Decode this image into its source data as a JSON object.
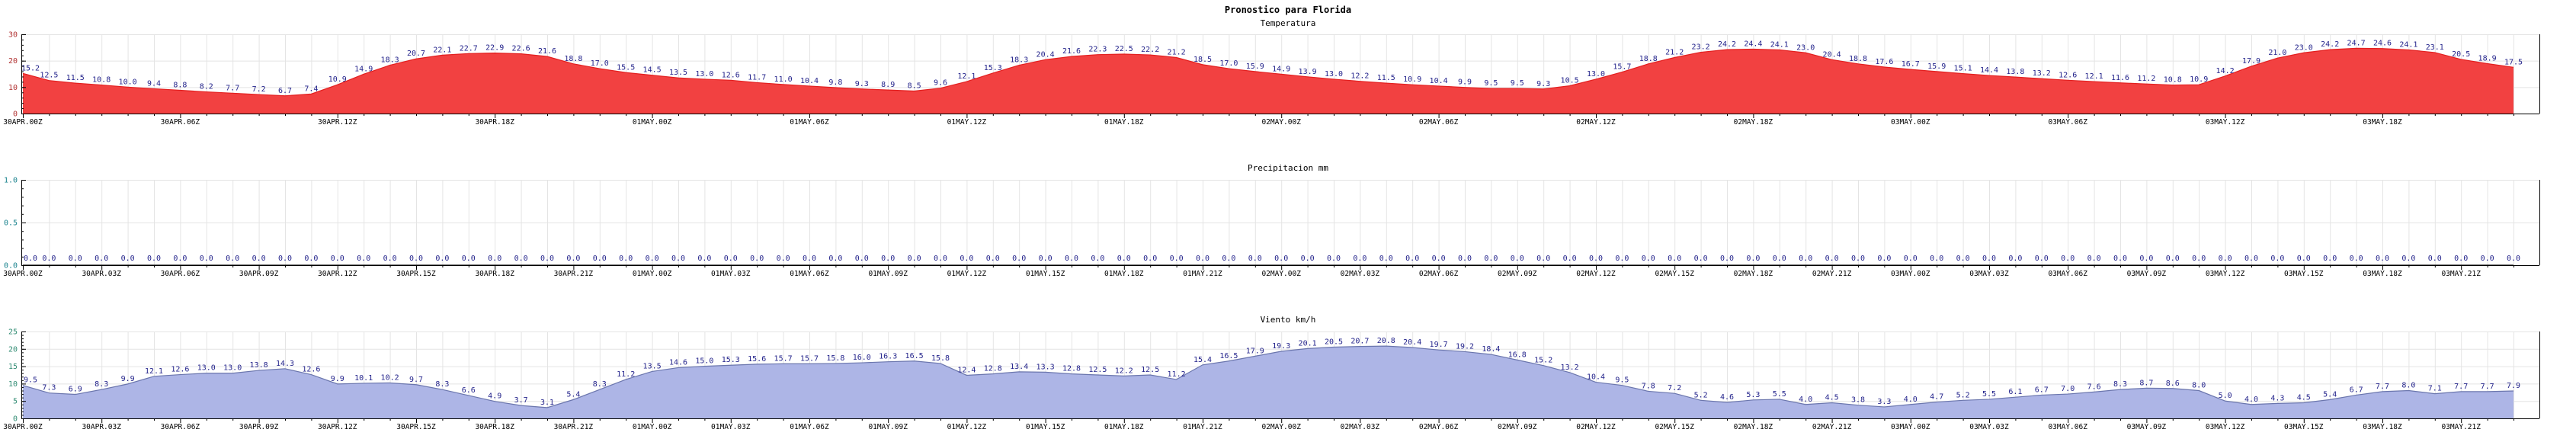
{
  "title": "Pronostico para Florida",
  "colors": {
    "value_text": "#23238b",
    "grid": "#e4e4e4",
    "axis": "#000000",
    "x_tick_text": "#000000"
  },
  "chart_data": [
    {
      "type": "area",
      "title": "Temperatura",
      "x_start": "30APR.00Z",
      "x_step_hours": 1,
      "x_tick_every_hours": 6,
      "x_tick_labels": [
        "30APR.00Z",
        "30APR.06Z",
        "30APR.12Z",
        "30APR.18Z",
        "01MAY.00Z",
        "01MAY.06Z",
        "01MAY.12Z",
        "01MAY.18Z",
        "02MAY.00Z",
        "02MAY.06Z",
        "02MAY.12Z",
        "02MAY.18Z",
        "03MAY.00Z",
        "03MAY.06Z",
        "03MAY.12Z",
        "03MAY.18Z"
      ],
      "ylim": [
        0,
        30
      ],
      "yticks": [
        0,
        10,
        20,
        30
      ],
      "ytick_labels": [
        "0",
        "10",
        "20",
        "30"
      ],
      "y_minor_step": 2,
      "grid": true,
      "legend": "none",
      "fill_color": "#f24141",
      "line_color": "#e31f1f",
      "ylabel_color": "#b03030",
      "values": [
        15.2,
        12.5,
        11.5,
        10.8,
        10.0,
        9.4,
        8.8,
        8.2,
        7.7,
        7.2,
        6.7,
        7.4,
        10.9,
        14.9,
        18.3,
        20.7,
        22.1,
        22.7,
        22.9,
        22.6,
        21.6,
        18.8,
        17.0,
        15.5,
        14.5,
        13.5,
        13.0,
        12.6,
        11.7,
        11.0,
        10.4,
        9.8,
        9.3,
        8.9,
        8.5,
        9.6,
        12.1,
        15.3,
        18.3,
        20.4,
        21.6,
        22.3,
        22.5,
        22.2,
        21.2,
        18.5,
        17.0,
        15.9,
        14.9,
        13.9,
        13.0,
        12.2,
        11.5,
        10.9,
        10.4,
        9.9,
        9.5,
        9.5,
        9.3,
        10.5,
        13.0,
        15.7,
        18.8,
        21.2,
        23.2,
        24.2,
        24.4,
        24.1,
        23.0,
        20.4,
        18.8,
        17.6,
        16.7,
        15.9,
        15.1,
        14.4,
        13.8,
        13.2,
        12.6,
        12.1,
        11.6,
        11.2,
        10.8,
        10.9,
        14.2,
        17.9,
        21.0,
        23.0,
        24.2,
        24.7,
        24.6,
        24.1,
        23.1,
        20.5,
        18.9,
        17.5
      ]
    },
    {
      "type": "area",
      "title": "Precipitacion mm",
      "x_start": "30APR.00Z",
      "x_step_hours": 1,
      "x_tick_every_hours": 3,
      "x_tick_labels": [
        "30APR.00Z",
        "30APR.03Z",
        "30APR.06Z",
        "30APR.09Z",
        "30APR.12Z",
        "30APR.15Z",
        "30APR.18Z",
        "30APR.21Z",
        "01MAY.00Z",
        "01MAY.03Z",
        "01MAY.06Z",
        "01MAY.09Z",
        "01MAY.12Z",
        "01MAY.15Z",
        "01MAY.18Z",
        "01MAY.21Z",
        "02MAY.00Z",
        "02MAY.03Z",
        "02MAY.06Z",
        "02MAY.09Z",
        "02MAY.12Z",
        "02MAY.15Z",
        "02MAY.18Z",
        "02MAY.21Z",
        "03MAY.00Z",
        "03MAY.03Z",
        "03MAY.06Z",
        "03MAY.09Z",
        "03MAY.12Z",
        "03MAY.15Z",
        "03MAY.18Z",
        "03MAY.21Z"
      ],
      "ylim": [
        0,
        1
      ],
      "yticks": [
        0,
        0.5,
        1.0
      ],
      "ytick_labels": [
        "0.0",
        "0.5",
        "1.0"
      ],
      "y_minor_step": 0.1,
      "grid": true,
      "legend": "none",
      "fill_color": "#ffffff",
      "line_color": "#000000",
      "ylabel_color": "#17818c",
      "labels_on_baseline": true,
      "values": [
        0,
        0,
        0,
        0,
        0,
        0,
        0,
        0,
        0,
        0,
        0,
        0,
        0,
        0,
        0,
        0,
        0,
        0,
        0,
        0,
        0,
        0,
        0,
        0,
        0,
        0,
        0,
        0,
        0,
        0,
        0,
        0,
        0,
        0,
        0,
        0,
        0,
        0,
        0,
        0,
        0,
        0,
        0,
        0,
        0,
        0,
        0,
        0,
        0,
        0,
        0,
        0,
        0,
        0,
        0,
        0,
        0,
        0,
        0,
        0,
        0,
        0,
        0,
        0,
        0,
        0,
        0,
        0,
        0,
        0,
        0,
        0,
        0,
        0,
        0,
        0,
        0,
        0,
        0,
        0,
        0,
        0,
        0,
        0,
        0,
        0,
        0,
        0,
        0,
        0,
        0,
        0,
        0,
        0,
        0,
        0
      ]
    },
    {
      "type": "area",
      "title": "Viento km/h",
      "x_start": "30APR.00Z",
      "x_step_hours": 1,
      "x_tick_every_hours": 3,
      "x_tick_labels": [
        "30APR.00Z",
        "30APR.03Z",
        "30APR.06Z",
        "30APR.09Z",
        "30APR.12Z",
        "30APR.15Z",
        "30APR.18Z",
        "30APR.21Z",
        "01MAY.00Z",
        "01MAY.03Z",
        "01MAY.06Z",
        "01MAY.09Z",
        "01MAY.12Z",
        "01MAY.15Z",
        "01MAY.18Z",
        "01MAY.21Z",
        "02MAY.00Z",
        "02MAY.03Z",
        "02MAY.06Z",
        "02MAY.09Z",
        "02MAY.12Z",
        "02MAY.15Z",
        "02MAY.18Z",
        "02MAY.21Z",
        "03MAY.00Z",
        "03MAY.03Z",
        "03MAY.06Z",
        "03MAY.09Z",
        "03MAY.12Z",
        "03MAY.15Z",
        "03MAY.18Z",
        "03MAY.21Z"
      ],
      "ylim": [
        0,
        25
      ],
      "yticks": [
        0,
        5,
        10,
        15,
        20,
        25
      ],
      "ytick_labels": [
        "0",
        "5",
        "10",
        "15",
        "20",
        "25"
      ],
      "y_minor_step": 1,
      "grid": true,
      "legend": "none",
      "fill_color": "#adb5e6",
      "line_color": "#6b76ad",
      "ylabel_color": "#2f8b72",
      "values": [
        9.5,
        7.3,
        6.9,
        8.3,
        9.9,
        12.1,
        12.6,
        13.0,
        13.0,
        13.8,
        14.3,
        12.6,
        9.9,
        10.1,
        10.2,
        9.7,
        8.3,
        6.6,
        4.9,
        3.7,
        3.1,
        5.4,
        8.3,
        11.2,
        13.5,
        14.6,
        15.0,
        15.3,
        15.6,
        15.7,
        15.7,
        15.8,
        16.0,
        16.3,
        16.5,
        15.8,
        12.4,
        12.8,
        13.4,
        13.3,
        12.8,
        12.5,
        12.2,
        12.5,
        11.2,
        15.4,
        16.5,
        17.9,
        19.3,
        20.1,
        20.5,
        20.7,
        20.8,
        20.4,
        19.7,
        19.2,
        18.4,
        16.8,
        15.2,
        13.2,
        10.4,
        9.5,
        7.8,
        7.2,
        5.2,
        4.6,
        5.3,
        5.5,
        4.0,
        4.5,
        3.8,
        3.3,
        4.0,
        4.7,
        5.2,
        5.5,
        6.1,
        6.7,
        7.0,
        7.6,
        8.3,
        8.7,
        8.6,
        8.0,
        5.0,
        4.0,
        4.3,
        4.5,
        5.4,
        6.7,
        7.7,
        8.0,
        7.1,
        7.7,
        7.7,
        7.9
      ]
    }
  ]
}
